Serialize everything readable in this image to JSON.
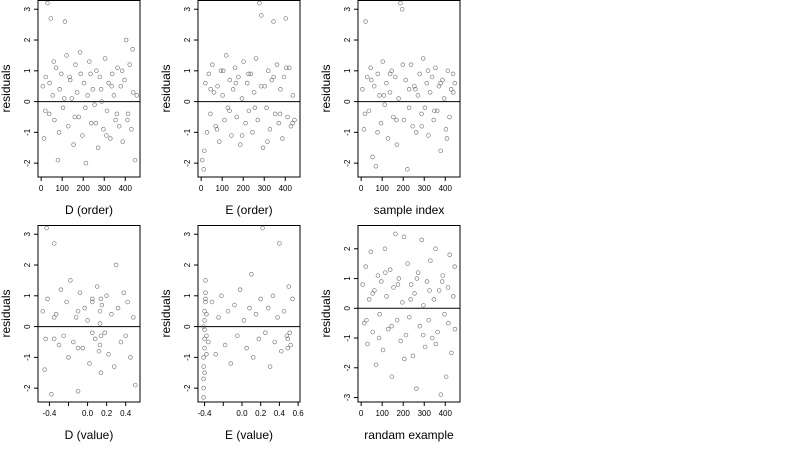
{
  "chart_data": [
    {
      "type": "scatter",
      "xlabel": "D (order)",
      "ylabel": "residuals",
      "xticks": [
        0,
        100,
        200,
        300,
        400
      ],
      "yticks": [
        -2,
        -1,
        0,
        1,
        2,
        3
      ],
      "xlim": [
        -15,
        470
      ],
      "ylim": [
        -2.45,
        3.3
      ],
      "hline": 0,
      "x": [
        8,
        14,
        22,
        30,
        38,
        46,
        55,
        63,
        71,
        80,
        88,
        96,
        104,
        113,
        121,
        129,
        138,
        146,
        154,
        163,
        171,
        179,
        188,
        196,
        204,
        213,
        221,
        229,
        238,
        246,
        254,
        263,
        271,
        279,
        288,
        296,
        304,
        313,
        321,
        329,
        338,
        346,
        354,
        363,
        371,
        379,
        388,
        396,
        404,
        413,
        421,
        429,
        438,
        446,
        20,
        40,
        60,
        85,
        110,
        135,
        160,
        185,
        210,
        235,
        260,
        285,
        310,
        335,
        360,
        385,
        410,
        435,
        455
      ],
      "y": [
        0.5,
        -1.2,
        0.8,
        3.2,
        -0.4,
        2.7,
        0.2,
        -0.6,
        1.1,
        -1.9,
        0.4,
        0.9,
        -0.2,
        2.6,
        1.5,
        -0.8,
        0.7,
        0.1,
        -1.4,
        1.2,
        0.3,
        -0.5,
        0.9,
        -1.1,
        0.6,
        -2.0,
        0.2,
        1.3,
        -0.7,
        0.4,
        -0.1,
        1.0,
        -1.5,
        0.8,
        0.0,
        -0.9,
        1.4,
        -0.3,
        0.6,
        -1.2,
        0.9,
        0.2,
        -0.6,
        1.1,
        -0.8,
        0.5,
        -1.3,
        0.7,
        2.0,
        -0.4,
        1.2,
        -0.9,
        0.3,
        -1.9,
        -0.3,
        0.6,
        1.3,
        -1.0,
        0.1,
        0.8,
        -0.5,
        1.6,
        -0.2,
        0.9,
        -0.7,
        0.4,
        -1.1,
        0.5,
        -0.4,
        1.0,
        -0.6,
        1.7,
        0.2
      ]
    },
    {
      "type": "scatter",
      "xlabel": "E (order)",
      "ylabel": "residuals",
      "xticks": [
        0,
        100,
        200,
        300,
        400
      ],
      "yticks": [
        -2,
        -1,
        0,
        1,
        2,
        3
      ],
      "xlim": [
        -15,
        470
      ],
      "ylim": [
        -2.45,
        3.3
      ],
      "hline": 0,
      "x": [
        5,
        12,
        20,
        28,
        36,
        44,
        53,
        61,
        69,
        78,
        86,
        94,
        102,
        111,
        119,
        127,
        136,
        144,
        152,
        161,
        169,
        177,
        186,
        194,
        202,
        211,
        219,
        227,
        236,
        244,
        252,
        261,
        269,
        277,
        286,
        294,
        302,
        311,
        319,
        327,
        336,
        344,
        352,
        361,
        369,
        377,
        386,
        394,
        402,
        411,
        419,
        427,
        436,
        444,
        15,
        45,
        75,
        105,
        135,
        165,
        195,
        225,
        255,
        285,
        315,
        345,
        375,
        405,
        435
      ],
      "y": [
        -1.9,
        -2.2,
        0.6,
        -1.0,
        0.9,
        -0.4,
        1.2,
        0.3,
        -0.8,
        0.5,
        -1.3,
        1.0,
        0.2,
        -0.6,
        1.5,
        -0.2,
        0.7,
        -1.1,
        0.4,
        1.1,
        -0.5,
        0.8,
        -1.4,
        0.1,
        1.3,
        -0.7,
        0.6,
        -0.3,
        0.9,
        -1.0,
        0.3,
        1.4,
        -0.6,
        3.2,
        2.8,
        -1.5,
        0.5,
        -0.2,
        1.0,
        -0.9,
        0.7,
        2.6,
        -0.4,
        1.2,
        -0.7,
        0.4,
        -1.2,
        0.8,
        2.7,
        -0.5,
        1.1,
        -0.8,
        0.2,
        -0.6,
        -1.6,
        0.4,
        -0.9,
        1.0,
        -0.3,
        0.6,
        -1.1,
        0.9,
        -0.2,
        0.5,
        -1.3,
        0.8,
        -0.4,
        1.1,
        -0.7
      ]
    },
    {
      "type": "scatter",
      "xlabel": "sample index",
      "ylabel": "residuals",
      "xticks": [
        0,
        100,
        200,
        300,
        400
      ],
      "yticks": [
        -2,
        -1,
        0,
        1,
        2,
        3
      ],
      "xlim": [
        -15,
        470
      ],
      "ylim": [
        -2.45,
        3.3
      ],
      "hline": 0,
      "x": [
        6,
        13,
        21,
        29,
        37,
        45,
        54,
        62,
        70,
        79,
        87,
        95,
        103,
        112,
        120,
        128,
        137,
        145,
        153,
        162,
        170,
        178,
        187,
        195,
        203,
        212,
        220,
        228,
        237,
        245,
        253,
        262,
        270,
        278,
        287,
        295,
        303,
        312,
        320,
        328,
        337,
        345,
        353,
        362,
        370,
        378,
        387,
        395,
        403,
        412,
        420,
        428,
        437,
        445,
        18,
        48,
        78,
        108,
        138,
        168,
        198,
        228,
        258,
        288,
        318,
        348,
        378,
        408,
        438
      ],
      "y": [
        0.4,
        -0.9,
        2.6,
        0.8,
        -0.3,
        1.1,
        -1.8,
        0.5,
        -2.1,
        0.9,
        0.2,
        -0.7,
        1.3,
        -0.1,
        0.6,
        -1.2,
        0.3,
        1.0,
        -0.5,
        0.8,
        -1.4,
        0.1,
        3.2,
        3.0,
        -0.6,
        0.7,
        -2.2,
        0.4,
        1.2,
        -0.8,
        0.5,
        -1.0,
        0.2,
        0.9,
        -0.4,
        1.4,
        -0.2,
        0.6,
        -1.1,
        0.3,
        0.8,
        -0.6,
        1.1,
        -0.3,
        0.5,
        -1.6,
        0.7,
        0.1,
        -0.9,
        1.0,
        -0.5,
        0.4,
        0.9,
        0.6,
        -0.4,
        0.7,
        -1.0,
        0.2,
        0.9,
        -0.6,
        1.2,
        -0.2,
        0.4,
        -0.8,
        1.0,
        -0.3,
        0.6,
        -1.2,
        0.3
      ]
    },
    {
      "type": "scatter",
      "xlabel": "D (value)",
      "ylabel": "residuals",
      "xticks": [
        -0.4,
        -0.2,
        0.0,
        0.2,
        0.4
      ],
      "xticklabels": [
        "-0.4",
        "",
        "0.0",
        "0.2",
        "0.4"
      ],
      "yticks": [
        -2,
        -1,
        0,
        1,
        2,
        3
      ],
      "xlim": [
        -0.52,
        0.55
      ],
      "ylim": [
        -2.45,
        3.3
      ],
      "hline": 0,
      "x": [
        -0.47,
        -0.45,
        -0.44,
        -0.43,
        -0.42,
        -0.38,
        -0.35,
        -0.33,
        -0.3,
        -0.28,
        -0.25,
        -0.22,
        -0.2,
        -0.18,
        -0.15,
        -0.12,
        -0.1,
        -0.08,
        -0.05,
        -0.03,
        0.0,
        0.02,
        0.05,
        0.08,
        0.1,
        0.12,
        0.13,
        0.14,
        0.15,
        0.18,
        0.2,
        0.22,
        0.25,
        0.28,
        0.3,
        0.32,
        0.35,
        0.38,
        0.4,
        0.42,
        0.45,
        0.48,
        0.5,
        0.13,
        0.13,
        0.14,
        0.14,
        -0.1,
        -0.1,
        -0.35,
        -0.35,
        0.05,
        0.05
      ],
      "y": [
        0.5,
        -1.4,
        -0.4,
        3.2,
        0.9,
        -2.2,
        2.7,
        0.4,
        -0.6,
        1.2,
        -0.3,
        0.8,
        -1.0,
        1.5,
        -0.5,
        0.3,
        -2.1,
        1.1,
        -0.7,
        0.6,
        0.2,
        -1.2,
        0.9,
        -0.4,
        1.3,
        -0.8,
        0.5,
        -1.5,
        0.7,
        -0.2,
        1.0,
        -0.9,
        0.4,
        -1.3,
        2.0,
        0.6,
        -0.5,
        1.1,
        -0.3,
        0.8,
        -1.0,
        0.3,
        -1.9,
        0.1,
        -0.6,
        0.9,
        -0.3,
        0.5,
        -0.7,
        0.3,
        -0.4,
        0.8,
        -0.2
      ]
    },
    {
      "type": "scatter",
      "xlabel": "E (value)",
      "ylabel": "residuals",
      "xticks": [
        -0.4,
        -0.2,
        0.0,
        0.2,
        0.4,
        0.6
      ],
      "xticklabels": [
        "-0.4",
        "",
        "0.0",
        "0.2",
        "0.4",
        "0.6"
      ],
      "yticks": [
        -2,
        -1,
        0,
        1,
        2,
        3
      ],
      "xlim": [
        -0.47,
        0.62
      ],
      "ylim": [
        -2.45,
        3.3
      ],
      "hline": 0,
      "x": [
        -0.41,
        -0.41,
        -0.41,
        -0.41,
        -0.41,
        -0.4,
        -0.4,
        -0.4,
        -0.4,
        -0.4,
        -0.39,
        -0.39,
        -0.39,
        -0.38,
        -0.38,
        -0.38,
        -0.41,
        -0.4,
        -0.39,
        -0.36,
        -0.32,
        -0.28,
        -0.25,
        -0.22,
        -0.18,
        -0.15,
        -0.12,
        -0.08,
        -0.05,
        -0.02,
        0.02,
        0.05,
        0.08,
        0.1,
        0.12,
        0.15,
        0.18,
        0.2,
        0.22,
        0.25,
        0.28,
        0.3,
        0.33,
        0.35,
        0.38,
        0.4,
        0.42,
        0.45,
        0.48,
        0.5,
        0.52,
        0.54,
        0.49,
        0.49,
        0.51
      ],
      "y": [
        -2.3,
        -2.0,
        -1.7,
        -1.3,
        -1.0,
        -0.7,
        -0.4,
        -0.1,
        0.2,
        0.5,
        0.8,
        1.1,
        1.5,
        -0.9,
        -0.3,
        0.4,
        0.0,
        -1.5,
        0.9,
        -0.5,
        0.8,
        -0.9,
        0.3,
        1.0,
        -0.6,
        0.5,
        -1.2,
        0.7,
        -0.3,
        1.2,
        0.2,
        -0.7,
        0.6,
        1.7,
        -1.0,
        0.4,
        -0.4,
        0.9,
        3.2,
        -0.2,
        0.6,
        -1.3,
        1.0,
        -0.5,
        0.3,
        2.7,
        -0.8,
        0.5,
        -0.3,
        1.3,
        -0.6,
        0.9,
        -0.4,
        -0.7,
        -0.2
      ]
    },
    {
      "type": "scatter",
      "xlabel": "randam example",
      "ylabel": "residuals",
      "xticks": [
        0,
        100,
        200,
        300,
        400
      ],
      "yticks": [
        -3,
        -2,
        -1,
        0,
        1,
        2
      ],
      "xlim": [
        -15,
        470
      ],
      "ylim": [
        -3.15,
        2.8
      ],
      "hline": 0,
      "x": [
        7,
        14,
        22,
        30,
        38,
        46,
        55,
        63,
        71,
        80,
        88,
        96,
        104,
        113,
        121,
        129,
        138,
        146,
        154,
        163,
        171,
        179,
        188,
        196,
        204,
        213,
        221,
        229,
        238,
        246,
        254,
        263,
        271,
        279,
        288,
        296,
        304,
        313,
        321,
        329,
        338,
        346,
        354,
        363,
        371,
        379,
        388,
        396,
        404,
        413,
        421,
        429,
        438,
        446,
        25,
        55,
        85,
        115,
        145,
        175,
        205,
        235,
        265,
        295,
        325,
        355,
        385,
        415,
        445
      ],
      "y": [
        0.8,
        -0.5,
        1.4,
        -1.2,
        0.3,
        1.9,
        -0.8,
        0.6,
        -1.9,
        1.1,
        -0.2,
        0.9,
        -1.4,
        2.0,
        0.4,
        -0.7,
        1.3,
        -2.3,
        0.7,
        2.5,
        -0.4,
        1.0,
        -1.1,
        0.2,
        2.4,
        -0.9,
        1.5,
        -0.3,
        0.8,
        -1.6,
        0.5,
        -2.7,
        1.2,
        -0.6,
        2.3,
        0.1,
        -1.3,
        0.9,
        -0.4,
        1.6,
        -1.0,
        0.3,
        2.0,
        -0.8,
        0.6,
        -2.9,
        1.1,
        -0.2,
        -2.3,
        0.7,
        1.8,
        -1.5,
        0.4,
        -0.7,
        -0.4,
        0.5,
        -1.0,
        1.2,
        -0.6,
        0.8,
        -1.7,
        0.3,
        1.0,
        -0.9,
        0.6,
        -1.2,
        0.9,
        -0.5,
        1.4
      ]
    }
  ]
}
